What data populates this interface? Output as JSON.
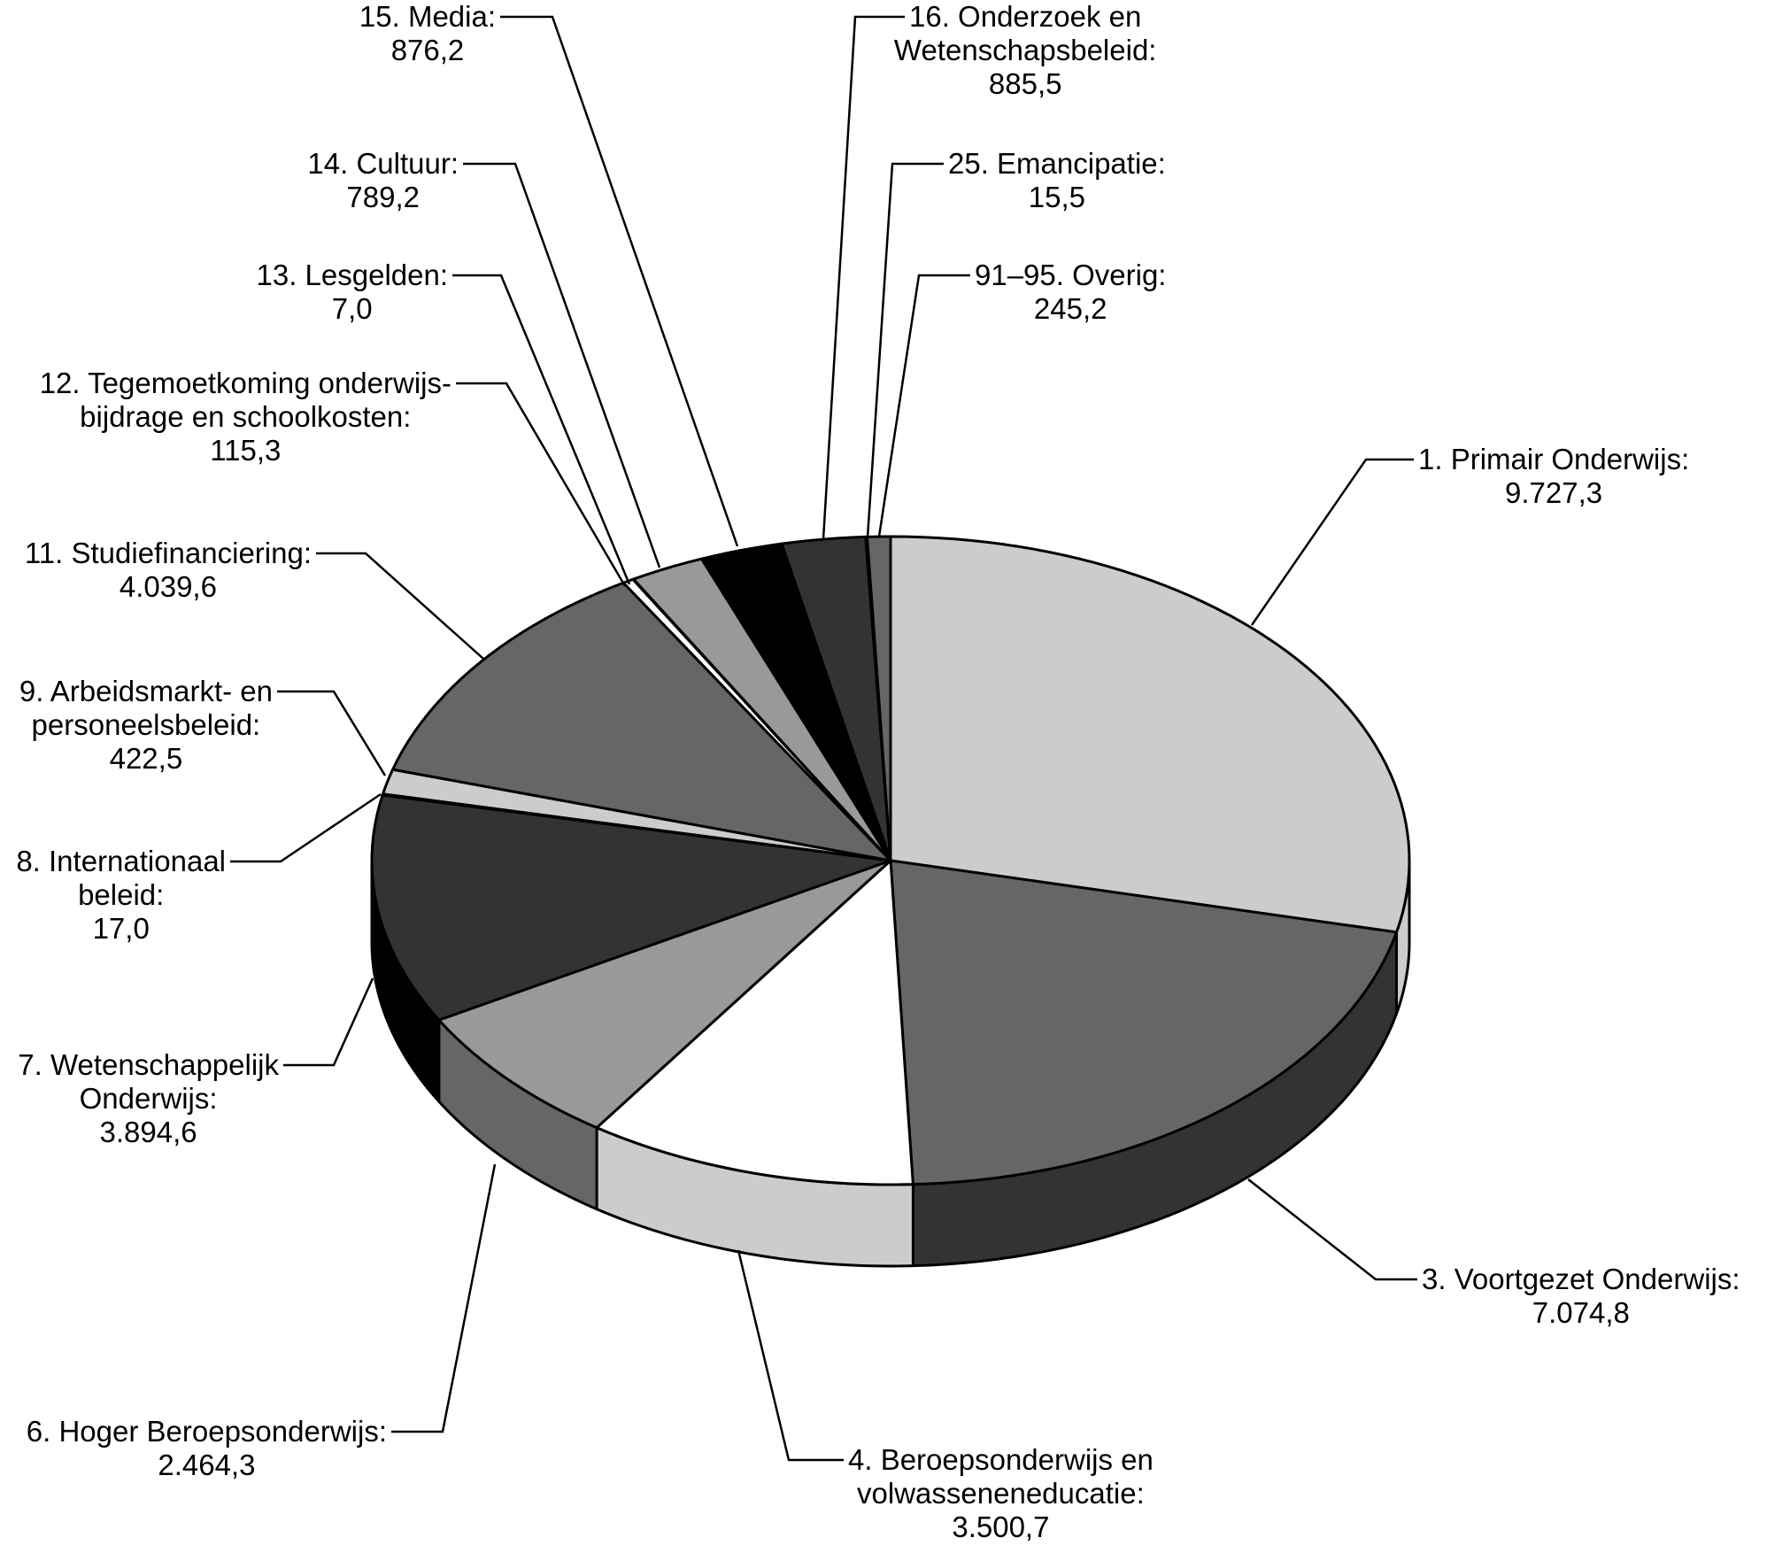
{
  "chart_data": {
    "type": "pie",
    "title": "",
    "style": "3d-exploded-none",
    "start": "12 o'clock, clockwise",
    "slices": [
      {
        "label_lines": [
          "1. Primair Onderwijs:"
        ],
        "value": 9727.3,
        "value_text": "9.727,3",
        "top_color": "#cccccc",
        "side_color": "#cccccc"
      },
      {
        "label_lines": [
          "3. Voortgezet Onderwijs:"
        ],
        "value": 7074.8,
        "value_text": "7.074,8",
        "top_color": "#666666",
        "side_color": "#333333"
      },
      {
        "label_lines": [
          "4. Beroepsonderwijs en",
          "volwasseneneducatie:"
        ],
        "value": 3500.7,
        "value_text": "3.500,7",
        "top_color": "#ffffff",
        "side_color": "#cccccc"
      },
      {
        "label_lines": [
          "6. Hoger Beroepsonderwijs:"
        ],
        "value": 2464.3,
        "value_text": "2.464,3",
        "top_color": "#999999",
        "side_color": "#666666"
      },
      {
        "label_lines": [
          "7. Wetenschappelijk",
          "Onderwijs:"
        ],
        "value": 3894.6,
        "value_text": "3.894,6",
        "top_color": "#333333",
        "side_color": "#000000"
      },
      {
        "label_lines": [
          "8. Internationaal",
          "beleid:"
        ],
        "value": 17.0,
        "value_text": "17,0",
        "top_color": "#000000",
        "side_color": "#000000"
      },
      {
        "label_lines": [
          "9. Arbeidsmarkt- en",
          "personeelsbeleid:"
        ],
        "value": 422.5,
        "value_text": "422,5",
        "top_color": "#cccccc",
        "side_color": "#cccccc"
      },
      {
        "label_lines": [
          "11. Studiefinanciering:"
        ],
        "value": 4039.6,
        "value_text": "4.039,6",
        "top_color": "#666666",
        "side_color": "#333333"
      },
      {
        "label_lines": [
          "12. Tegemoetkoming onderwijs-",
          "bijdrage en schoolkosten:"
        ],
        "value": 115.3,
        "value_text": "115,3",
        "top_color": "#ffffff",
        "side_color": "#cccccc"
      },
      {
        "label_lines": [
          "13. Lesgelden:"
        ],
        "value": 7.0,
        "value_text": "7,0",
        "top_color": "#000000",
        "side_color": "#000000"
      },
      {
        "label_lines": [
          "14. Cultuur:"
        ],
        "value": 789.2,
        "value_text": "789,2",
        "top_color": "#999999",
        "side_color": "#666666"
      },
      {
        "label_lines": [
          "15. Media:"
        ],
        "value": 876.2,
        "value_text": "876,2",
        "top_color": "#000000",
        "side_color": "#000000"
      },
      {
        "label_lines": [
          "16. Onderzoek en",
          "Wetenschapsbeleid:"
        ],
        "value": 885.5,
        "value_text": "885,5",
        "top_color": "#333333",
        "side_color": "#000000"
      },
      {
        "label_lines": [
          "25. Emancipatie:"
        ],
        "value": 15.5,
        "value_text": "15,5",
        "top_color": "#000000",
        "side_color": "#000000"
      },
      {
        "label_lines": [
          "91–95. Overig:"
        ],
        "value": 245.2,
        "value_text": "245,2",
        "top_color": "#666666",
        "side_color": "#333333"
      }
    ]
  }
}
